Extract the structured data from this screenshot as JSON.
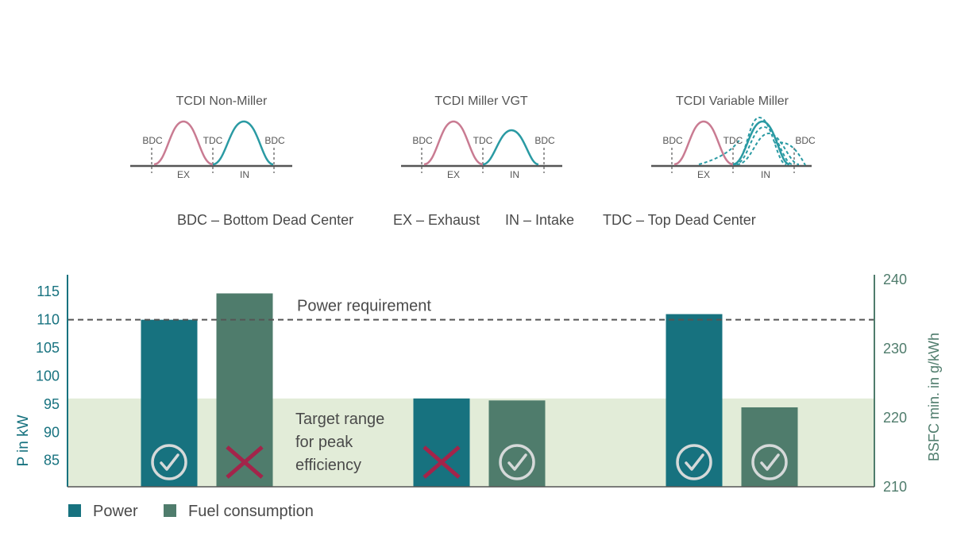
{
  "diagrams": [
    {
      "title": "TCDI Non-Miller",
      "labels": [
        "BDC",
        "TDC",
        "BDC",
        "EX",
        "IN"
      ]
    },
    {
      "title": "TCDI Miller VGT",
      "labels": [
        "BDC",
        "TDC",
        "BDC",
        "EX",
        "IN"
      ]
    },
    {
      "title": "TCDI Variable Miller",
      "labels": [
        "BDC",
        "TDC",
        "BDC",
        "EX",
        "IN"
      ]
    }
  ],
  "definitions": [
    "BDC – Bottom Dead Center",
    "EX – Exhaust",
    "IN – Intake",
    "TDC – Top Dead Center"
  ],
  "colors": {
    "power": "#17727f",
    "fuel": "#4f7c6c",
    "exhaust_curve": "#c97b92",
    "intake_curve": "#2a9aa3",
    "target_band": "#e2ecd8",
    "cross": "#a3244a",
    "check": "#d5d9d9"
  },
  "chart_data": {
    "type": "bar",
    "categories": [
      "TCDI Non-Miller",
      "TCDI Miller VGT",
      "TCDI Variable Miller"
    ],
    "series": [
      {
        "name": "Power",
        "axis": "left",
        "values": [
          110,
          96,
          111
        ],
        "status": [
          "check",
          "cross",
          "check"
        ]
      },
      {
        "name": "Fuel consumption",
        "axis": "right",
        "values": [
          238,
          222.5,
          221.5
        ],
        "status": [
          "cross",
          "check",
          "check"
        ]
      }
    ],
    "y_left": {
      "label": "P in kW",
      "ticks": [
        85,
        90,
        95,
        100,
        105,
        110,
        115
      ],
      "range": [
        80.3,
        118
      ]
    },
    "y_right": {
      "label": "BSFC min. in g/kWh",
      "ticks": [
        210,
        220,
        230,
        240
      ],
      "range": [
        210,
        240.7
      ]
    },
    "reference_line": {
      "label": "Power requirement",
      "value": 110
    },
    "target_band": {
      "label": [
        "Target range",
        "for peak",
        "efficiency"
      ],
      "from": 80.3,
      "to": 96
    },
    "legend": [
      "Power",
      "Fuel consumption"
    ],
    "legend_position": "bottom-left"
  }
}
